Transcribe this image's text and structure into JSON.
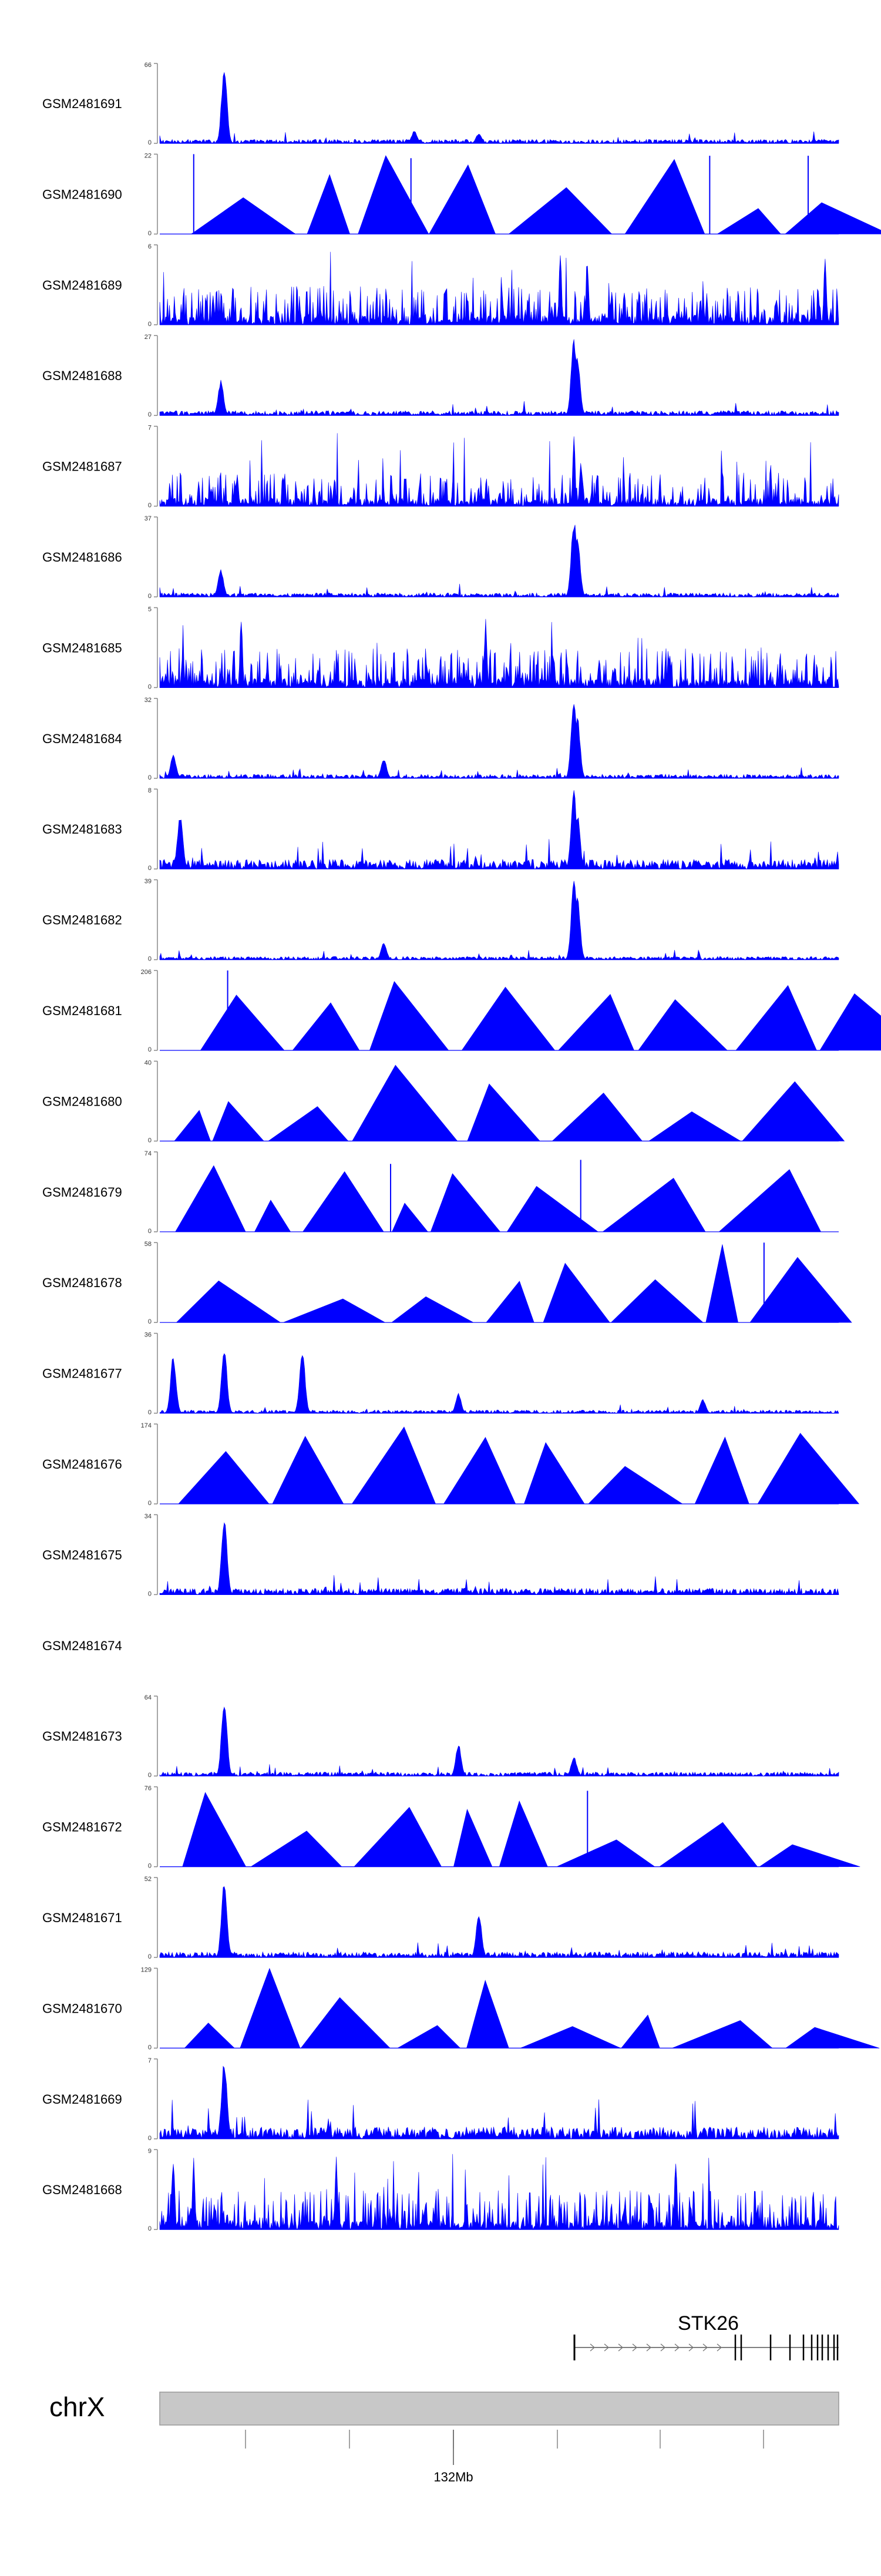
{
  "chart_data": {
    "type": "area",
    "description": "Genome browser coverage tracks",
    "tracks": [
      {
        "name": "GSM2481691",
        "ymax": 66,
        "ymin": 0,
        "style": "peaks",
        "noise": 0.05,
        "peaks": [
          [
            0.095,
            1.0
          ],
          [
            0.375,
            0.16
          ],
          [
            0.47,
            0.13
          ]
        ]
      },
      {
        "name": "GSM2481690",
        "ymax": 22,
        "ymin": 0,
        "style": "triangles",
        "noise": 0.0,
        "spikes": [
          [
            0.05,
            1.0
          ],
          [
            0.37,
            0.95
          ],
          [
            0.81,
            0.98
          ],
          [
            0.955,
            0.98
          ]
        ]
      },
      {
        "name": "GSM2481689",
        "ymax": 6,
        "ymin": 0,
        "style": "dense",
        "noise": 0.35,
        "peaks": [
          [
            0.59,
            0.95
          ],
          [
            0.63,
            0.8
          ],
          [
            0.98,
            0.9
          ]
        ]
      },
      {
        "name": "GSM2481688",
        "ymax": 27,
        "ymin": 0,
        "style": "peaks",
        "noise": 0.06,
        "peaks": [
          [
            0.09,
            0.45
          ],
          [
            0.61,
            1.0
          ],
          [
            0.615,
            0.75
          ]
        ]
      },
      {
        "name": "GSM2481687",
        "ymax": 7,
        "ymin": 0,
        "style": "dense",
        "noise": 0.3,
        "peaks": [
          [
            0.61,
            0.9
          ],
          [
            0.62,
            0.6
          ]
        ]
      },
      {
        "name": "GSM2481686",
        "ymax": 37,
        "ymin": 0,
        "style": "peaks",
        "noise": 0.05,
        "peaks": [
          [
            0.09,
            0.35
          ],
          [
            0.61,
            1.0
          ],
          [
            0.615,
            0.8
          ]
        ]
      },
      {
        "name": "GSM2481685",
        "ymax": 5,
        "ymin": 0,
        "style": "dense",
        "noise": 0.35,
        "peaks": [
          [
            0.12,
            0.95
          ],
          [
            0.48,
            0.9
          ]
        ]
      },
      {
        "name": "GSM2481684",
        "ymax": 32,
        "ymin": 0,
        "style": "peaks",
        "noise": 0.05,
        "peaks": [
          [
            0.02,
            0.3
          ],
          [
            0.33,
            0.25
          ],
          [
            0.61,
            1.0
          ],
          [
            0.615,
            0.8
          ]
        ]
      },
      {
        "name": "GSM2481683",
        "ymax": 8,
        "ymin": 0,
        "style": "peaks",
        "noise": 0.12,
        "peaks": [
          [
            0.03,
            0.7
          ],
          [
            0.61,
            1.0
          ],
          [
            0.615,
            0.7
          ]
        ]
      },
      {
        "name": "GSM2481682",
        "ymax": 39,
        "ymin": 0,
        "style": "peaks",
        "noise": 0.04,
        "peaks": [
          [
            0.33,
            0.22
          ],
          [
            0.61,
            1.0
          ],
          [
            0.615,
            0.8
          ]
        ]
      },
      {
        "name": "GSM2481681",
        "ymax": 206,
        "ymin": 0,
        "style": "triangles",
        "noise": 0.0,
        "spikes": [
          [
            0.1,
            1.0
          ]
        ]
      },
      {
        "name": "GSM2481680",
        "ymax": 40,
        "ymin": 0,
        "style": "triangles",
        "noise": 0.0,
        "spikes": []
      },
      {
        "name": "GSM2481679",
        "ymax": 74,
        "ymin": 0,
        "style": "triangles",
        "noise": 0.0,
        "spikes": [
          [
            0.34,
            0.85
          ],
          [
            0.62,
            0.9
          ]
        ]
      },
      {
        "name": "GSM2481678",
        "ymax": 58,
        "ymin": 0,
        "style": "triangles",
        "noise": 0.0,
        "spikes": [
          [
            0.89,
            1.0
          ]
        ]
      },
      {
        "name": "GSM2481677",
        "ymax": 36,
        "ymin": 0,
        "style": "peaks",
        "noise": 0.04,
        "peaks": [
          [
            0.02,
            0.75
          ],
          [
            0.095,
            0.85
          ],
          [
            0.21,
            0.82
          ],
          [
            0.44,
            0.25
          ],
          [
            0.8,
            0.18
          ]
        ]
      },
      {
        "name": "GSM2481676",
        "ymax": 174,
        "ymin": 0,
        "style": "triangles",
        "noise": 0.0,
        "spikes": []
      },
      {
        "name": "GSM2481675",
        "ymax": 34,
        "ymin": 0,
        "style": "peaks",
        "noise": 0.08,
        "peaks": [
          [
            0.095,
            1.0
          ]
        ]
      },
      {
        "name": "GSM2481674",
        "ymax": null,
        "ymin": null,
        "style": "empty",
        "noise": 0.0
      },
      {
        "name": "GSM2481673",
        "ymax": 64,
        "ymin": 0,
        "style": "peaks",
        "noise": 0.05,
        "peaks": [
          [
            0.095,
            1.0
          ],
          [
            0.44,
            0.4
          ],
          [
            0.61,
            0.25
          ]
        ]
      },
      {
        "name": "GSM2481672",
        "ymax": 76,
        "ymin": 0,
        "style": "triangles",
        "noise": 0.0,
        "spikes": [
          [
            0.63,
            0.95
          ]
        ]
      },
      {
        "name": "GSM2481671",
        "ymax": 52,
        "ymin": 0,
        "style": "peaks",
        "noise": 0.07,
        "peaks": [
          [
            0.095,
            1.0
          ],
          [
            0.47,
            0.55
          ]
        ]
      },
      {
        "name": "GSM2481670",
        "ymax": 129,
        "ymin": 0,
        "style": "triangles",
        "noise": 0.0,
        "spikes": []
      },
      {
        "name": "GSM2481669",
        "ymax": 7,
        "ymin": 0,
        "style": "peaks",
        "noise": 0.15,
        "peaks": [
          [
            0.095,
            1.0
          ]
        ]
      },
      {
        "name": "GSM2481668",
        "ymax": 9,
        "ymin": 0,
        "style": "dense",
        "noise": 0.35,
        "peaks": [
          [
            0.02,
            0.95
          ],
          [
            0.05,
            0.9
          ],
          [
            0.26,
            0.95
          ],
          [
            0.76,
            0.95
          ]
        ]
      }
    ]
  },
  "gene": {
    "name": "STK26"
  },
  "chromosome": {
    "label": "chrX",
    "tick_label": "132Mb"
  },
  "colors": {
    "track": "#0000ff",
    "axis": "#888888",
    "ideogram": "#c8c8c8",
    "gene": "#000000"
  }
}
